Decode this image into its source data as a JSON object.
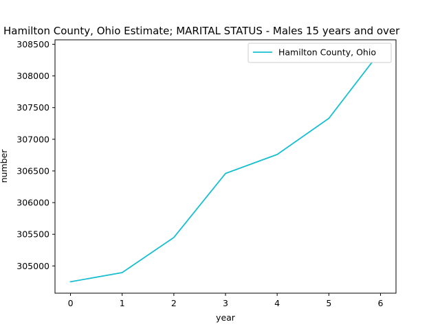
{
  "chart_data": {
    "type": "line",
    "title": "Hamilton County, Ohio Estimate; MARITAL STATUS - Males 15 years and over",
    "xlabel": "year",
    "ylabel": "number",
    "x": [
      0,
      1,
      2,
      3,
      4,
      5,
      6
    ],
    "series": [
      {
        "name": "Hamilton County, Ohio",
        "color": "#17becf",
        "values": [
          304750,
          304895,
          305450,
          306460,
          306760,
          307330,
          308390
        ]
      }
    ],
    "xlim": [
      -0.3,
      6.3
    ],
    "ylim": [
      304570,
      308570
    ],
    "xticks": [
      0,
      1,
      2,
      3,
      4,
      5,
      6
    ],
    "yticks": [
      305000,
      305500,
      306000,
      306500,
      307000,
      307500,
      308000,
      308500
    ],
    "legend_position": "top-right",
    "grid": false
  }
}
